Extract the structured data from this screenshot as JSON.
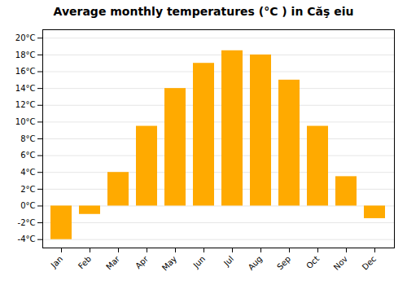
{
  "chart_data": {
    "type": "bar",
    "title": "Average monthly temperatures (°C ) in Căş eiu",
    "categories": [
      "Jan",
      "Feb",
      "Mar",
      "Apr",
      "May",
      "Jun",
      "Jul",
      "Aug",
      "Sep",
      "Oct",
      "Nov",
      "Dec"
    ],
    "values": [
      -4,
      -1,
      4,
      9.5,
      14,
      17,
      18.5,
      18,
      15,
      9.5,
      3.5,
      -1.5
    ],
    "color": "#FFAA00",
    "ylim": [
      -5,
      21
    ],
    "yticks": [
      {
        "value": -4,
        "label": "-4°C"
      },
      {
        "value": -2,
        "label": "-2°C"
      },
      {
        "value": 0,
        "label": "0°C"
      },
      {
        "value": 2,
        "label": "2°C"
      },
      {
        "value": 4,
        "label": "4°C"
      },
      {
        "value": 6,
        "label": "6°C"
      },
      {
        "value": 8,
        "label": "8°C"
      },
      {
        "value": 10,
        "label": "10°C"
      },
      {
        "value": 12,
        "label": "12°C"
      },
      {
        "value": 14,
        "label": "14°C"
      },
      {
        "value": 16,
        "label": "16°C"
      },
      {
        "value": 18,
        "label": "18°C"
      },
      {
        "value": 20,
        "label": "20°C"
      }
    ],
    "grid": true
  }
}
